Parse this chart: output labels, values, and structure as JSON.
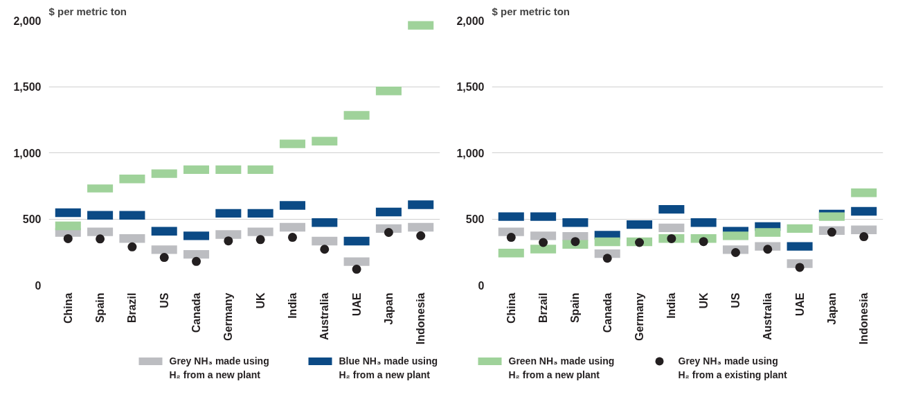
{
  "chart_data": [
    {
      "type": "bar",
      "ylabel": "$ per metric ton",
      "categories": [
        "China",
        "Spain",
        "Brazil",
        "US",
        "Canada",
        "Germany",
        "UK",
        "India",
        "Australia",
        "UAE",
        "Japan",
        "Indonesia"
      ],
      "ylim": [
        0,
        2000
      ],
      "yticks": [
        {
          "value": 0,
          "label": "0"
        },
        {
          "value": 500,
          "label": "500"
        },
        {
          "value": 1000,
          "label": "1,000"
        },
        {
          "value": 1500,
          "label": "1,500"
        },
        {
          "value": 2000,
          "label": "2,000"
        }
      ],
      "grid": "y",
      "legend": "bottom",
      "series": [
        {
          "name": "Grey NH₃ made using\nH₂ from a new plant",
          "color": "#bcbdc1",
          "base": [
            365,
            370,
            320,
            235,
            200,
            350,
            370,
            405,
            300,
            145,
            395,
            405
          ],
          "values": [
            65,
            65,
            65,
            65,
            65,
            65,
            65,
            65,
            65,
            65,
            65,
            65
          ]
        },
        {
          "name": "Blue NH₃ made using\nH₂ from a new plant",
          "color": "#0b4a85",
          "base": [
            515,
            495,
            495,
            375,
            340,
            510,
            510,
            570,
            440,
            300,
            520,
            575
          ],
          "values": [
            65,
            65,
            65,
            65,
            65,
            65,
            65,
            65,
            65,
            65,
            65,
            65
          ]
        },
        {
          "name": "Green NH₃ made using\nH₂ from a new plant",
          "color": "#9fd29a",
          "base": [
            415,
            700,
            770,
            810,
            840,
            840,
            840,
            1035,
            1055,
            1250,
            1435,
            1930
          ],
          "values": [
            65,
            60,
            65,
            65,
            65,
            65,
            65,
            65,
            65,
            65,
            65,
            65
          ]
        },
        {
          "name": "Grey NH₃ made using\nH₂ from a existing plant",
          "type": "scatter",
          "marker": "circle",
          "color": "#231f20",
          "values": [
            351,
            349,
            289,
            209,
            179,
            334,
            344,
            361,
            271,
            120,
            398,
            373
          ]
        }
      ]
    },
    {
      "type": "bar",
      "ylabel": "$ per metric ton",
      "categories": [
        "China",
        "Brzail",
        "Spain",
        "Canada",
        "Germany",
        "India",
        "UK",
        "US",
        "Australia",
        "UAE",
        "Japan",
        "Indonesia"
      ],
      "ylim": [
        0,
        2000
      ],
      "yticks": [
        {
          "value": 0,
          "label": "0"
        },
        {
          "value": 500,
          "label": "500"
        },
        {
          "value": 1000,
          "label": "1,000"
        },
        {
          "value": 1500,
          "label": "1,500"
        },
        {
          "value": 2000,
          "label": "2,000"
        }
      ],
      "grid": "y",
      "series": [
        {
          "color": "#bcbdc1",
          "base": [
            370,
            340,
            335,
            205,
            null,
            400,
            null,
            235,
            260,
            130,
            380,
            385
          ],
          "values": [
            65,
            65,
            65,
            65,
            null,
            65,
            null,
            65,
            65,
            65,
            65,
            65
          ]
        },
        {
          "color": "#0b4a85",
          "base": [
            485,
            485,
            440,
            345,
            425,
            540,
            440,
            375,
            410,
            260,
            505,
            525
          ],
          "values": [
            65,
            65,
            65,
            65,
            65,
            65,
            65,
            65,
            65,
            65,
            65,
            65
          ]
        },
        {
          "color": "#9fd29a",
          "base": [
            210,
            240,
            275,
            295,
            295,
            320,
            320,
            340,
            365,
            395,
            485,
            665
          ],
          "values": [
            65,
            65,
            65,
            65,
            65,
            65,
            65,
            65,
            65,
            65,
            65,
            65
          ]
        },
        {
          "type": "scatter",
          "marker": "circle",
          "color": "#231f20",
          "values": [
            361,
            322,
            329,
            203,
            322,
            351,
            329,
            246,
            271,
            134,
            400,
            366
          ]
        }
      ]
    }
  ]
}
